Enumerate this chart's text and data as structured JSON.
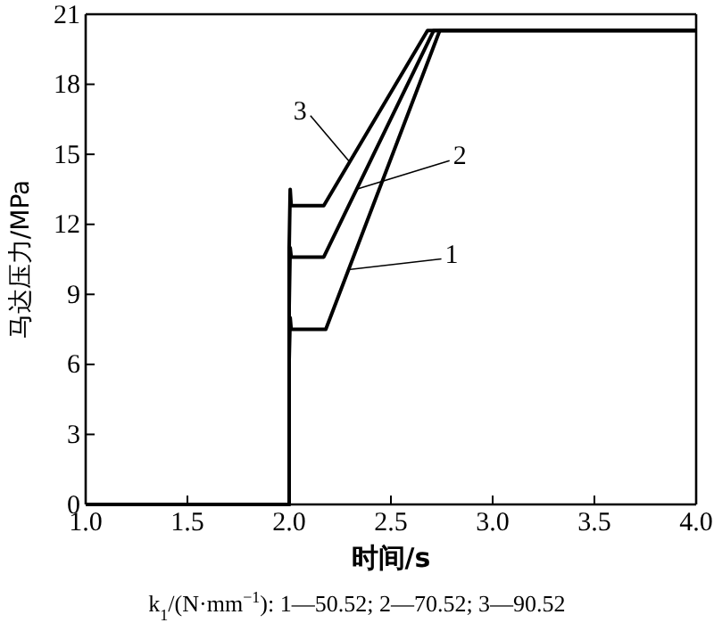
{
  "chart_data": {
    "type": "line",
    "xlabel": "时间/s",
    "ylabel": "马达压力/MPa",
    "xlim": [
      1.0,
      4.0
    ],
    "xticks": [
      {
        "value": 1,
        "label": "1.0"
      },
      {
        "value": 1.5,
        "label": "1.5"
      },
      {
        "value": 2,
        "label": "2.0"
      },
      {
        "value": 2.5,
        "label": "2.5"
      },
      {
        "value": 3,
        "label": "3.0"
      },
      {
        "value": 3.5,
        "label": "3.5"
      },
      {
        "value": 4,
        "label": "4.0"
      }
    ],
    "ylim": [
      0,
      21
    ],
    "yticks": [
      0,
      3,
      6,
      9,
      12,
      15,
      18,
      21
    ],
    "grid": false,
    "legend": "center",
    "marker": "none",
    "line_style": "solid",
    "series": [
      {
        "name": "1",
        "color": "#000000",
        "x": [
          1.0,
          2.0,
          2.0,
          2.005,
          2.01,
          2.02,
          2.18,
          2.74,
          4.0
        ],
        "values": [
          0,
          0,
          6.2,
          8.0,
          7.5,
          7.5,
          7.5,
          20.3,
          20.3
        ]
      },
      {
        "name": "2",
        "color": "#000000",
        "x": [
          1.0,
          2.0,
          2.0,
          2.005,
          2.01,
          2.02,
          2.17,
          2.71,
          4.0
        ],
        "values": [
          0,
          0,
          8.5,
          11.0,
          10.6,
          10.6,
          10.6,
          20.3,
          20.3
        ]
      },
      {
        "name": "3",
        "color": "#000000",
        "x": [
          1.0,
          2.0,
          2.0,
          2.005,
          2.01,
          2.02,
          2.17,
          2.68,
          4.0
        ],
        "values": [
          0,
          0,
          11.0,
          13.5,
          12.8,
          12.8,
          12.8,
          20.3,
          20.3
        ]
      }
    ],
    "annotations": [
      "k$_{1}$/(N·mm$^{−1}$): 1—50.52; 2—70.52; 3—90.52"
    ]
  }
}
